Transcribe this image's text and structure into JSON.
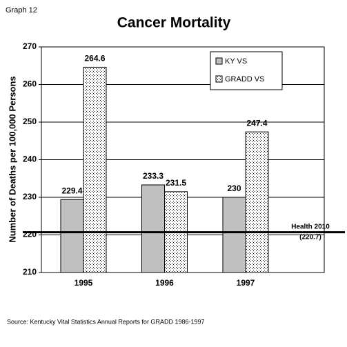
{
  "chart_data": {
    "type": "bar",
    "corner_label": "Graph 12",
    "title": "Cancer Mortality",
    "ylabel": "Number of Deaths per 100,000 Persons",
    "categories": [
      "1995",
      "1996",
      "1997"
    ],
    "series": [
      {
        "name": "KY VS",
        "color": "#c0c0c0",
        "values": [
          229.4,
          233.3,
          230
        ]
      },
      {
        "name": "GRADD VS",
        "color": "#ffffff",
        "pattern": "dots",
        "values": [
          264.6,
          231.5,
          247.4
        ]
      }
    ],
    "ylim": [
      210,
      270
    ],
    "yticks": [
      210,
      220,
      230,
      240,
      250,
      260,
      270
    ],
    "grid": true,
    "legend": "upper right",
    "reference_line": {
      "label": "Health 2010",
      "value": 220.7,
      "value_label": "(220.7)"
    },
    "source": "Source: Kentucky Vital Statistics Annual Reports for GRADD 1986-1997"
  }
}
